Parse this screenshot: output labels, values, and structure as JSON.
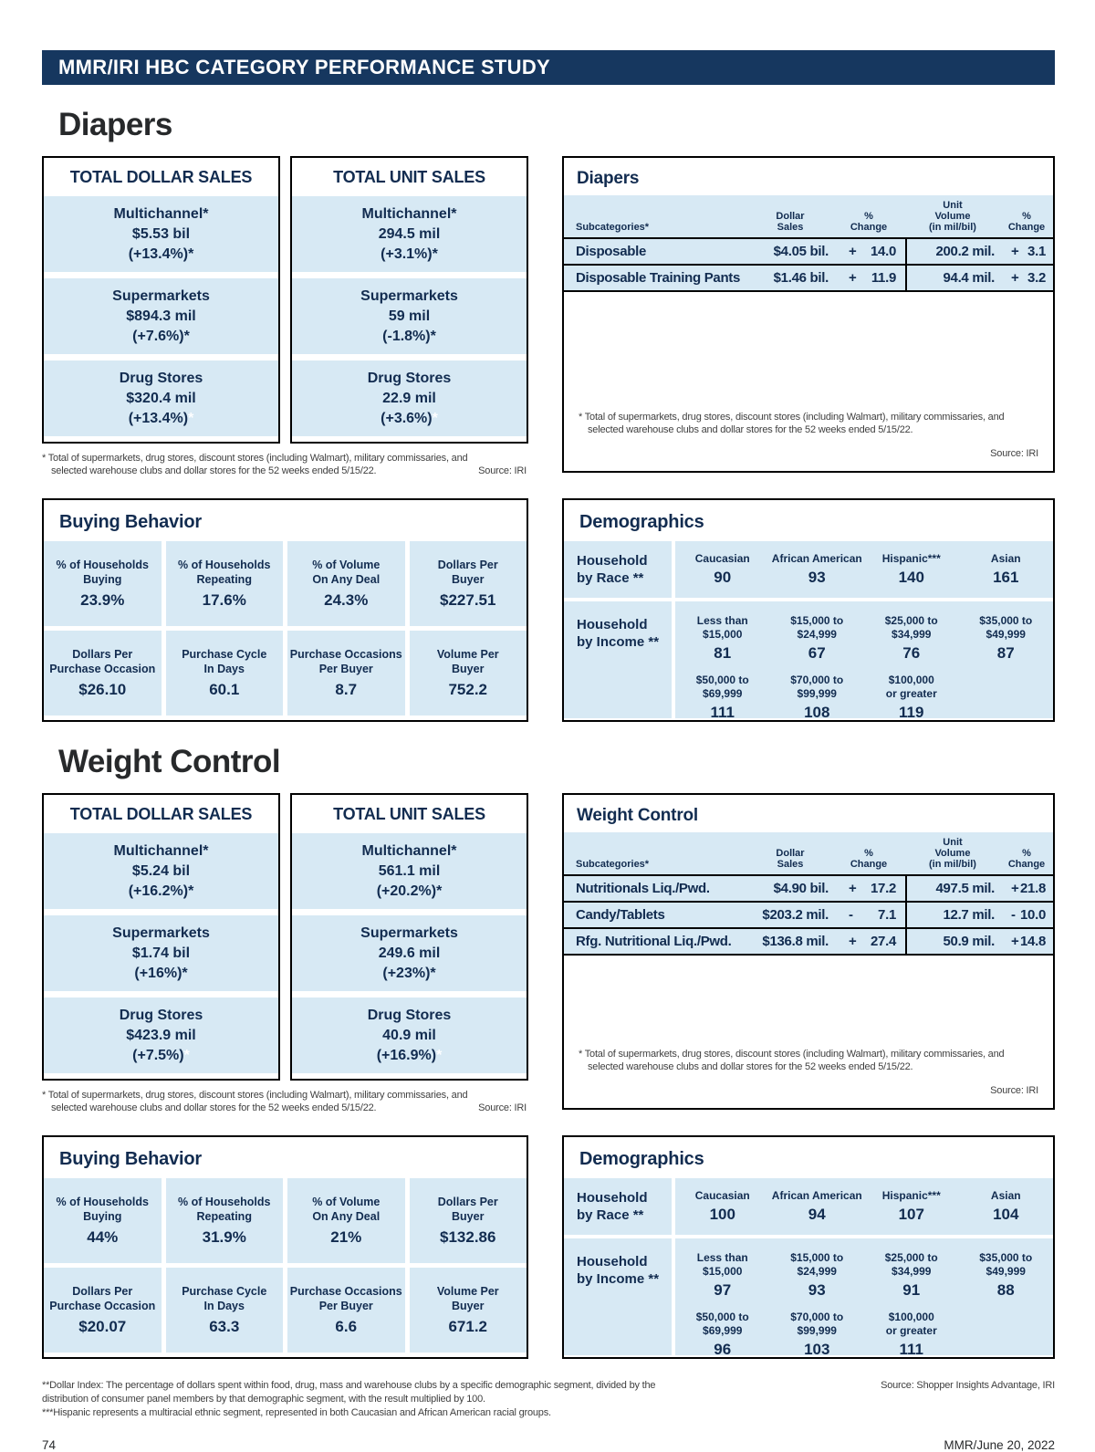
{
  "colors": {
    "header_bar": "#16375f",
    "cell_blue": "#d7e9f4",
    "text_navy": "#122c50"
  },
  "masthead": {
    "title": "MMR/IRI HBC CATEGORY PERFORMANCE STUDY"
  },
  "footer": {
    "page_number": "74",
    "issue": "MMR/June 20, 2022"
  },
  "footnotes": {
    "dollar_index": "**Dollar Index: The percentage of dollars spent within food, drug, mass and warehouse clubs by a specific demographic segment, divided by the distribution of consumer panel members by that demographic segment, with the result multiplied by 100.",
    "hispanic": "***Hispanic represents a multiracial ethnic segment, represented in both Caucasian and African American racial groups.",
    "source": "Source: Shopper Insights Advantage, IRI"
  },
  "sections": [
    {
      "heading": "Diapers",
      "footnote": "* Total of supermarkets, drug stores, discount stores (including Walmart), military commissaries, and selected warehouse clubs and dollar stores for the 52 weeks ended 5/15/22.",
      "source": "Source: IRI",
      "dollar_box": {
        "title": "TOTAL DOLLAR SALES",
        "cells": [
          {
            "label": "Multichannel*",
            "value": "$5.53 bil",
            "change": "(+13.4%)*"
          },
          {
            "label": "Supermarkets",
            "value": "$894.3 mil",
            "change": "(+7.6%)*"
          },
          {
            "label": "Drug Stores",
            "value": "$320.4 mil",
            "change": "(+13.4%)",
            "change_suffix": "*"
          }
        ]
      },
      "unit_box": {
        "title": "TOTAL UNIT SALES",
        "cells": [
          {
            "label": "Multichannel*",
            "value": "294.5 mil",
            "change": "(+3.1%)*"
          },
          {
            "label": "Supermarkets",
            "value": "59 mil",
            "change": "(-1.8%)*"
          },
          {
            "label": "Drug Stores",
            "value": "22.9 mil",
            "change": "(+3.6%)",
            "change_suffix": "*"
          }
        ]
      },
      "table": {
        "title": "Diapers",
        "headers": {
          "sub": "Subcategories*",
          "dollar": "Dollar\nSales",
          "pct1": "%\nChange",
          "vol": "Unit\nVolume\n(in mil/bil)",
          "pct2": "%\nChange"
        },
        "rows": [
          {
            "name": "Disposable",
            "dollar": "$4.05 bil.",
            "d_sign": "+",
            "d_val": "14.0",
            "vol": "200.2 mil.",
            "v_sign": "+",
            "v_val": "3.1"
          },
          {
            "name": "Disposable Training Pants",
            "dollar": "$1.46 bil.",
            "d_sign": "+",
            "d_val": "11.9",
            "vol": "94.4 mil.",
            "v_sign": "+",
            "v_val": "3.2"
          }
        ]
      },
      "buying": {
        "title": "Buying Behavior",
        "cells": [
          {
            "label": "% of Households\nBuying",
            "value": "23.9%"
          },
          {
            "label": "% of Households\nRepeating",
            "value": "17.6%"
          },
          {
            "label": "% of Volume\nOn Any Deal",
            "value": "24.3%"
          },
          {
            "label": "Dollars Per\nBuyer",
            "value": "$227.51"
          },
          {
            "label": "Dollars Per\nPurchase Occasion",
            "value": "$26.10"
          },
          {
            "label": "Purchase Cycle\nIn Days",
            "value": "60.1"
          },
          {
            "label": "Purchase Occasions\nPer Buyer",
            "value": "8.7"
          },
          {
            "label": "Volume Per\nBuyer",
            "value": "752.2"
          }
        ]
      },
      "demographics": {
        "title": "Demographics",
        "race_label": "Household\nby Race **",
        "race": [
          {
            "label": "Caucasian",
            "value": "90"
          },
          {
            "label": "African American",
            "value": "93"
          },
          {
            "label": "Hispanic***",
            "value": "140"
          },
          {
            "label": "Asian",
            "value": "161"
          }
        ],
        "income_label": "Household\nby Income **",
        "income_row1": [
          {
            "label": "Less than\n$15,000",
            "value": "81"
          },
          {
            "label": "$15,000 to\n$24,999",
            "value": "67"
          },
          {
            "label": "$25,000 to\n$34,999",
            "value": "76"
          },
          {
            "label": "$35,000 to\n$49,999",
            "value": "87"
          }
        ],
        "income_row2": [
          {
            "label": "$50,000 to\n$69,999",
            "value": "111"
          },
          {
            "label": "$70,000 to\n$99,999",
            "value": "108"
          },
          {
            "label": "$100,000\nor greater",
            "value": "119"
          }
        ]
      }
    },
    {
      "heading": "Weight Control",
      "footnote": "* Total of supermarkets, drug stores, discount stores (including Walmart), military commissaries, and selected warehouse clubs and dollar stores for the 52 weeks ended 5/15/22.",
      "source": "Source: IRI",
      "dollar_box": {
        "title": "TOTAL DOLLAR SALES",
        "cells": [
          {
            "label": "Multichannel*",
            "value": "$5.24 bil",
            "change": "(+16.2%)*"
          },
          {
            "label": "Supermarkets",
            "value": "$1.74 bil",
            "change": "(+16%)*"
          },
          {
            "label": "Drug Stores",
            "value": "$423.9 mil",
            "change": "(+7.5%)",
            "change_suffix": "*"
          }
        ]
      },
      "unit_box": {
        "title": "TOTAL UNIT SALES",
        "cells": [
          {
            "label": "Multichannel*",
            "value": "561.1 mil",
            "change": "(+20.2%)*"
          },
          {
            "label": "Supermarkets",
            "value": "249.6 mil",
            "change": "(+23%)*"
          },
          {
            "label": "Drug Stores",
            "value": "40.9 mil",
            "change": "(+16.9%)",
            "change_suffix": "*"
          }
        ]
      },
      "table": {
        "title": "Weight Control",
        "headers": {
          "sub": "Subcategories*",
          "dollar": "Dollar\nSales",
          "pct1": "%\nChange",
          "vol": "Unit\nVolume\n(in mil/bil)",
          "pct2": "%\nChange"
        },
        "rows": [
          {
            "name": "Nutritionals Liq./Pwd.",
            "dollar": "$4.90 bil.",
            "d_sign": "+",
            "d_val": "17.2",
            "vol": "497.5 mil.",
            "v_sign": "+",
            "v_val": "21.8"
          },
          {
            "name": "Candy/Tablets",
            "dollar": "$203.2 mil.",
            "d_sign": "-",
            "d_val": "7.1",
            "vol": "12.7 mil.",
            "v_sign": "-",
            "v_val": "10.0"
          },
          {
            "name": "Rfg. Nutritional Liq./Pwd.",
            "dollar": "$136.8 mil.",
            "d_sign": "+",
            "d_val": "27.4",
            "vol": "50.9 mil.",
            "v_sign": "+",
            "v_val": "14.8"
          }
        ]
      },
      "buying": {
        "title": "Buying Behavior",
        "cells": [
          {
            "label": "% of Households\nBuying",
            "value": "44%"
          },
          {
            "label": "% of Households\nRepeating",
            "value": "31.9%"
          },
          {
            "label": "% of Volume\nOn Any Deal",
            "value": "21%"
          },
          {
            "label": "Dollars Per\nBuyer",
            "value": "$132.86"
          },
          {
            "label": "Dollars Per\nPurchase Occasion",
            "value": "$20.07"
          },
          {
            "label": "Purchase Cycle\nIn Days",
            "value": "63.3"
          },
          {
            "label": "Purchase Occasions\nPer Buyer",
            "value": "6.6"
          },
          {
            "label": "Volume Per\nBuyer",
            "value": "671.2"
          }
        ]
      },
      "demographics": {
        "title": "Demographics",
        "race_label": "Household\nby Race **",
        "race": [
          {
            "label": "Caucasian",
            "value": "100"
          },
          {
            "label": "African American",
            "value": "94"
          },
          {
            "label": "Hispanic***",
            "value": "107"
          },
          {
            "label": "Asian",
            "value": "104"
          }
        ],
        "income_label": "Household\nby Income **",
        "income_row1": [
          {
            "label": "Less than\n$15,000",
            "value": "97"
          },
          {
            "label": "$15,000 to\n$24,999",
            "value": "93"
          },
          {
            "label": "$25,000 to\n$34,999",
            "value": "91"
          },
          {
            "label": "$35,000 to\n$49,999",
            "value": "88"
          }
        ],
        "income_row2": [
          {
            "label": "$50,000 to\n$69,999",
            "value": "96"
          },
          {
            "label": "$70,000 to\n$99,999",
            "value": "103"
          },
          {
            "label": "$100,000\nor greater",
            "value": "111"
          }
        ]
      }
    }
  ]
}
